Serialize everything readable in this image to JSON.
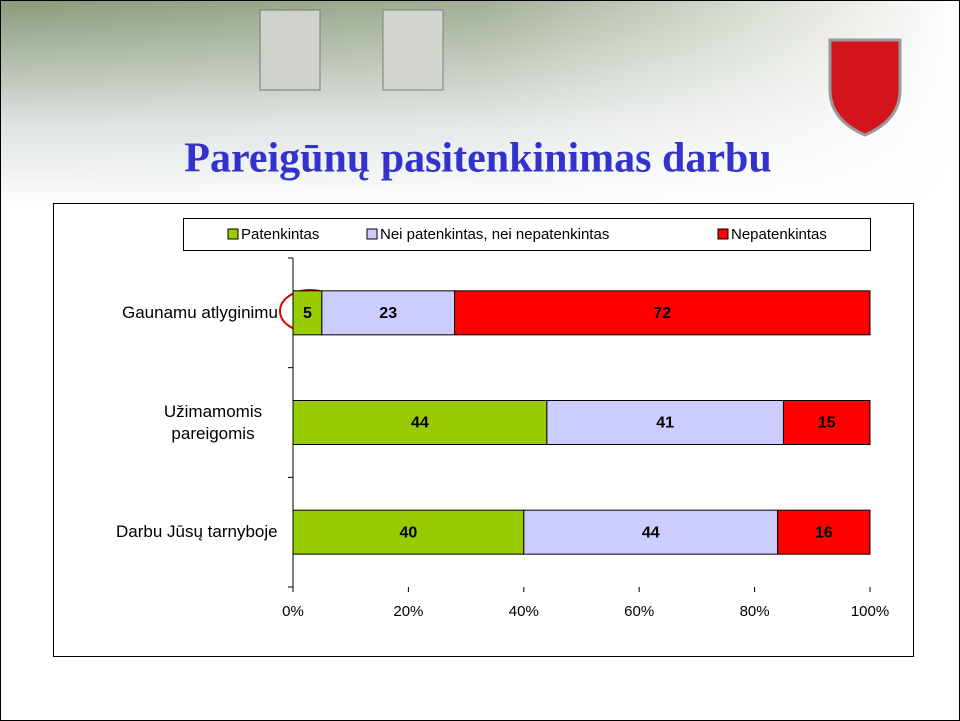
{
  "chart_data": {
    "type": "stacked_barh",
    "title": "Pareigūnų pasitenkinimas darbu",
    "categories": [
      "Gaunamu atlyginimu",
      "Užimamomis pareigomis",
      "Darbu Jūsų tarnyboje"
    ],
    "series": [
      {
        "name": "Patenkintas",
        "color": "#99cc00",
        "values": [
          5,
          44,
          40
        ]
      },
      {
        "name": "Nei patenkintas, nei nepatenkintas",
        "color": "#ccccff",
        "values": [
          23,
          41,
          44
        ]
      },
      {
        "name": "Nepatenkintas",
        "color": "#ff0000",
        "values": [
          72,
          15,
          16
        ]
      }
    ],
    "xlim": [
      0,
      100
    ],
    "xticks": [
      {
        "value": 0,
        "label": "0%"
      },
      {
        "value": 20,
        "label": "20%"
      },
      {
        "value": 40,
        "label": "40%"
      },
      {
        "value": 60,
        "label": "60%"
      },
      {
        "value": 80,
        "label": "80%"
      },
      {
        "value": 100,
        "label": "100%"
      }
    ],
    "legend": "top"
  }
}
